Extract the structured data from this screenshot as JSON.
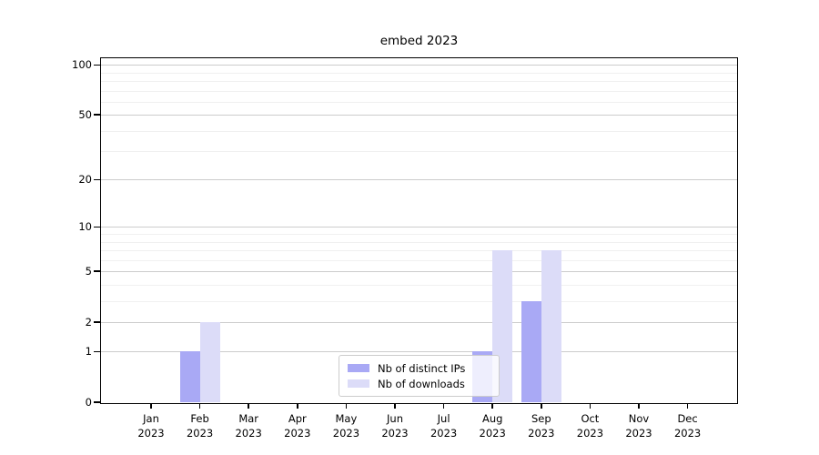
{
  "title": "embed 2023",
  "chart_data": {
    "type": "bar",
    "title": "embed 2023",
    "categories": [
      {
        "month": "Jan",
        "year": "2023"
      },
      {
        "month": "Feb",
        "year": "2023"
      },
      {
        "month": "Mar",
        "year": "2023"
      },
      {
        "month": "Apr",
        "year": "2023"
      },
      {
        "month": "May",
        "year": "2023"
      },
      {
        "month": "Jun",
        "year": "2023"
      },
      {
        "month": "Jul",
        "year": "2023"
      },
      {
        "month": "Aug",
        "year": "2023"
      },
      {
        "month": "Sep",
        "year": "2023"
      },
      {
        "month": "Oct",
        "year": "2023"
      },
      {
        "month": "Nov",
        "year": "2023"
      },
      {
        "month": "Dec",
        "year": "2023"
      }
    ],
    "series": [
      {
        "name": "Nb of distinct IPs",
        "color": "#a9a9f5",
        "values": [
          0,
          1,
          0,
          0,
          0,
          0,
          0,
          1,
          3,
          0,
          0,
          0
        ]
      },
      {
        "name": "Nb of downloads",
        "color": "#dcdcf8",
        "values": [
          0,
          2,
          0,
          0,
          0,
          0,
          0,
          7,
          7,
          0,
          0,
          0
        ]
      }
    ],
    "xlabel": "",
    "ylabel": "",
    "yscale": "log1p",
    "ylim": [
      0,
      110
    ],
    "y_major_ticks": [
      0,
      1,
      2,
      5,
      10,
      20,
      50,
      100
    ],
    "y_minor_gridlines": [
      3,
      4,
      6,
      7,
      8,
      9,
      30,
      40,
      60,
      70,
      80,
      90
    ],
    "grid": "horizontal",
    "legend_position": "lower-center-right"
  },
  "colors": {
    "grid_major": "#cccccc",
    "grid_minor": "#f0f0f0",
    "axis": "#000000",
    "legend_border": "#cccccc"
  }
}
